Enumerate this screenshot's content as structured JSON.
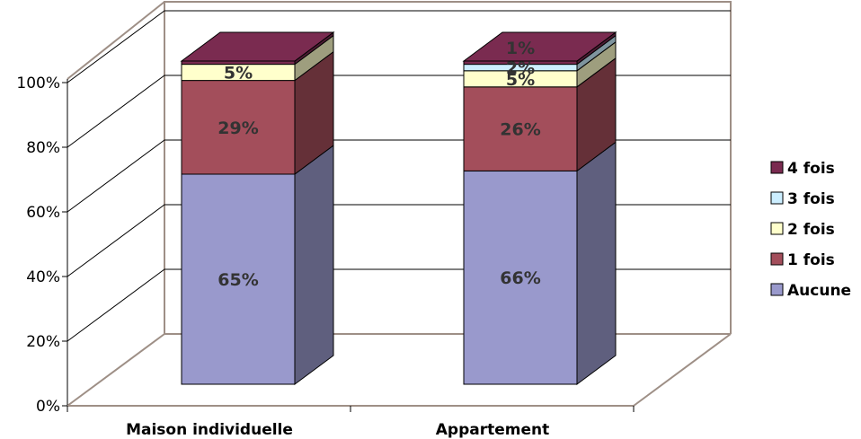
{
  "chart_data": {
    "type": "bar",
    "stacked": true,
    "three_d": true,
    "title": "",
    "xlabel": "",
    "ylabel": "",
    "ylim": [
      0,
      100
    ],
    "yticks": [
      "0%",
      "20%",
      "40%",
      "60%",
      "80%",
      "100%"
    ],
    "grid": true,
    "legend_position": "right",
    "categories": [
      "Maison individuelle",
      "Appartement"
    ],
    "series": [
      {
        "name": "Aucune",
        "color": "#9999cc",
        "values": [
          65,
          66
        ],
        "labels": [
          "65%",
          "66%"
        ]
      },
      {
        "name": "1 fois",
        "color": "#a34e5b",
        "values": [
          29,
          26
        ],
        "labels": [
          "29%",
          "26%"
        ]
      },
      {
        "name": "2 fois",
        "color": "#ffffcc",
        "values": [
          5,
          5
        ],
        "labels": [
          "5%",
          "5%"
        ]
      },
      {
        "name": "3 fois",
        "color": "#cceeff",
        "values": [
          0,
          2
        ],
        "labels": [
          "",
          "2%"
        ]
      },
      {
        "name": "4 fois",
        "color": "#7a2b50",
        "values": [
          1,
          1
        ],
        "labels": [
          "",
          "1%"
        ]
      }
    ]
  }
}
